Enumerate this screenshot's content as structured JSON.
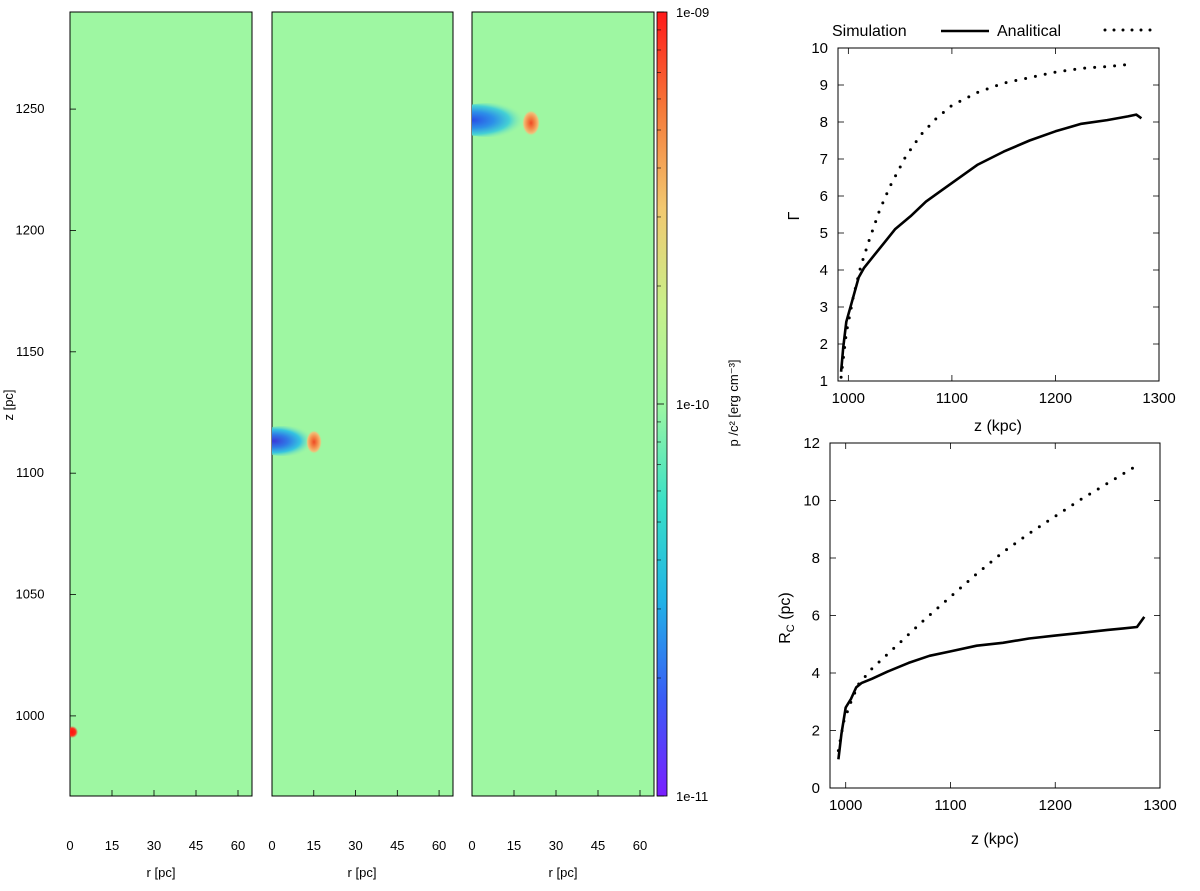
{
  "colors": {
    "background_field": "#9ef7a2",
    "axis": "#000000",
    "curve": "#000000"
  },
  "colorbar": {
    "label": "p /c² [erg cm⁻³]",
    "tick_labels": [
      "1e-09",
      "1e-10",
      "1e-11"
    ],
    "stops": [
      "#7a1fff",
      "#3a5cf5",
      "#21b3e6",
      "#39e0c6",
      "#9ef7a2",
      "#c8f08a",
      "#f2c870",
      "#f57a3a",
      "#ff1a1a"
    ]
  },
  "chart_data": [
    {
      "type": "heatmap",
      "panels": 3,
      "quantity": "p /c² [erg cm⁻³]",
      "scale": "log",
      "color_range": [
        1e-11,
        1e-09
      ],
      "xlabel": "r [pc]",
      "ylabel": "z [pc]",
      "xlim": [
        0,
        65
      ],
      "ylim": [
        967,
        1290
      ],
      "xticks": [
        0,
        15,
        30,
        45,
        60
      ],
      "xtick_labels": [
        "0",
        "15",
        "30",
        "45",
        "60"
      ],
      "yticks": [
        1000,
        1050,
        1100,
        1150,
        1200,
        1250
      ],
      "ytick_labels": [
        "1000",
        "1050",
        "1100",
        "1150",
        "1200",
        "1250"
      ],
      "blobs": [
        {
          "panel": 0,
          "z": 992,
          "r": 0,
          "kind": "overpressure",
          "value": 1e-09
        },
        {
          "panel": 1,
          "z": 1113,
          "r_front": 15,
          "kind": "shell"
        },
        {
          "panel": 2,
          "z": 1244,
          "r_front": 21,
          "kind": "shell"
        }
      ]
    },
    {
      "type": "line",
      "ylabel": "Γ",
      "xlabel": "z (kpc)",
      "xlim": [
        990,
        1300
      ],
      "ylim": [
        1,
        10
      ],
      "xticks": [
        1000,
        1100,
        1200,
        1300
      ],
      "xtick_labels": [
        "1000",
        "1100",
        "1200",
        "1300"
      ],
      "yticks": [
        1,
        2,
        3,
        4,
        5,
        6,
        7,
        8,
        9,
        10
      ],
      "ytick_labels": [
        "1",
        "2",
        "3",
        "4",
        "5",
        "6",
        "7",
        "8",
        "9",
        "10"
      ],
      "legend": {
        "position": "top",
        "entries": [
          {
            "label": "Simulation",
            "style": "solid"
          },
          {
            "label": "Analitical",
            "style": "dotted"
          }
        ]
      },
      "series": [
        {
          "name": "Simulation",
          "style": "solid",
          "x": [
            993,
            995,
            998,
            1003,
            1010,
            1015,
            1025,
            1035,
            1045,
            1060,
            1075,
            1090,
            1105,
            1125,
            1150,
            1175,
            1200,
            1225,
            1250,
            1270,
            1278,
            1283
          ],
          "y": [
            1.25,
            1.9,
            2.6,
            3.1,
            3.8,
            4.05,
            4.4,
            4.75,
            5.1,
            5.45,
            5.85,
            6.15,
            6.45,
            6.85,
            7.2,
            7.5,
            7.75,
            7.95,
            8.05,
            8.15,
            8.2,
            8.1
          ]
        },
        {
          "name": "Analitical",
          "style": "dotted",
          "x": [
            993,
            998,
            1005,
            1012,
            1020,
            1030,
            1040,
            1055,
            1070,
            1085,
            1100,
            1125,
            1150,
            1175,
            1200,
            1225,
            1250,
            1270
          ],
          "y": [
            1.1,
            2.3,
            3.3,
            4.1,
            4.8,
            5.6,
            6.25,
            7.05,
            7.65,
            8.1,
            8.45,
            8.8,
            9.05,
            9.2,
            9.35,
            9.45,
            9.5,
            9.55
          ]
        }
      ]
    },
    {
      "type": "line",
      "ylabel": "R",
      "ylabel_sub": "C",
      "ylabel_suffix": " (pc)",
      "xlabel": "z (kpc)",
      "xlim": [
        985,
        1300
      ],
      "ylim": [
        0,
        12
      ],
      "xticks": [
        1000,
        1100,
        1200,
        1300
      ],
      "xtick_labels": [
        "1000",
        "1100",
        "1200",
        "1300"
      ],
      "yticks": [
        0,
        2,
        4,
        6,
        8,
        10,
        12
      ],
      "ytick_labels": [
        "0",
        "2",
        "4",
        "6",
        "8",
        "10",
        "12"
      ],
      "series": [
        {
          "name": "Simulation",
          "style": "solid",
          "x": [
            993,
            996,
            1000,
            1005,
            1010,
            1015,
            1025,
            1040,
            1060,
            1080,
            1100,
            1125,
            1150,
            1175,
            1200,
            1225,
            1250,
            1265,
            1278,
            1285
          ],
          "y": [
            1.0,
            1.9,
            2.8,
            3.1,
            3.5,
            3.65,
            3.8,
            4.05,
            4.35,
            4.6,
            4.75,
            4.95,
            5.05,
            5.2,
            5.3,
            5.4,
            5.5,
            5.55,
            5.6,
            5.95
          ]
        },
        {
          "name": "Analitical",
          "style": "dotted",
          "x": [
            993,
            998,
            1005,
            1012,
            1025,
            1050,
            1075,
            1100,
            1125,
            1150,
            1175,
            1200,
            1225,
            1250,
            1275
          ],
          "y": [
            1.3,
            2.3,
            3.0,
            3.6,
            4.15,
            5.0,
            5.85,
            6.65,
            7.45,
            8.2,
            8.85,
            9.45,
            10.05,
            10.6,
            11.15
          ]
        }
      ]
    }
  ]
}
